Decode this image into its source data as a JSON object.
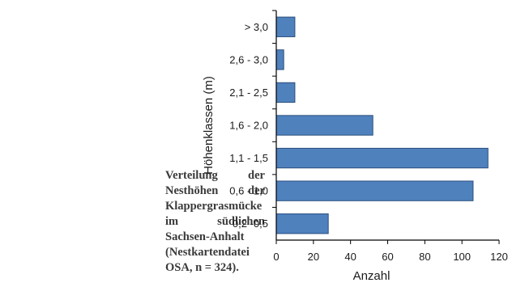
{
  "caption": "Verteilung der Nesthöhen der Klappergrasmücke im südlichen Sachsen-Anhalt (Nestkartendatei OSA, n = 324).",
  "chart_data": {
    "type": "bar",
    "orientation": "horizontal",
    "categories": [
      "0,2 -0,5",
      "0,6 - 1,0",
      "1,1 - 1,5",
      "1,6 - 2,0",
      "2,1 - 2,5",
      "2,6 - 3,0",
      "> 3,0"
    ],
    "values": [
      28,
      106,
      114,
      52,
      10,
      4,
      10
    ],
    "xlabel": "Anzahl",
    "ylabel": "Höhenklassen (m)",
    "xlim": [
      0,
      120
    ],
    "xticks": [
      "0",
      "20",
      "40",
      "60",
      "80",
      "100",
      "120"
    ],
    "grid": false,
    "bar_color": "#4f81bd",
    "bar_edge_color": "#2b4f7e"
  }
}
